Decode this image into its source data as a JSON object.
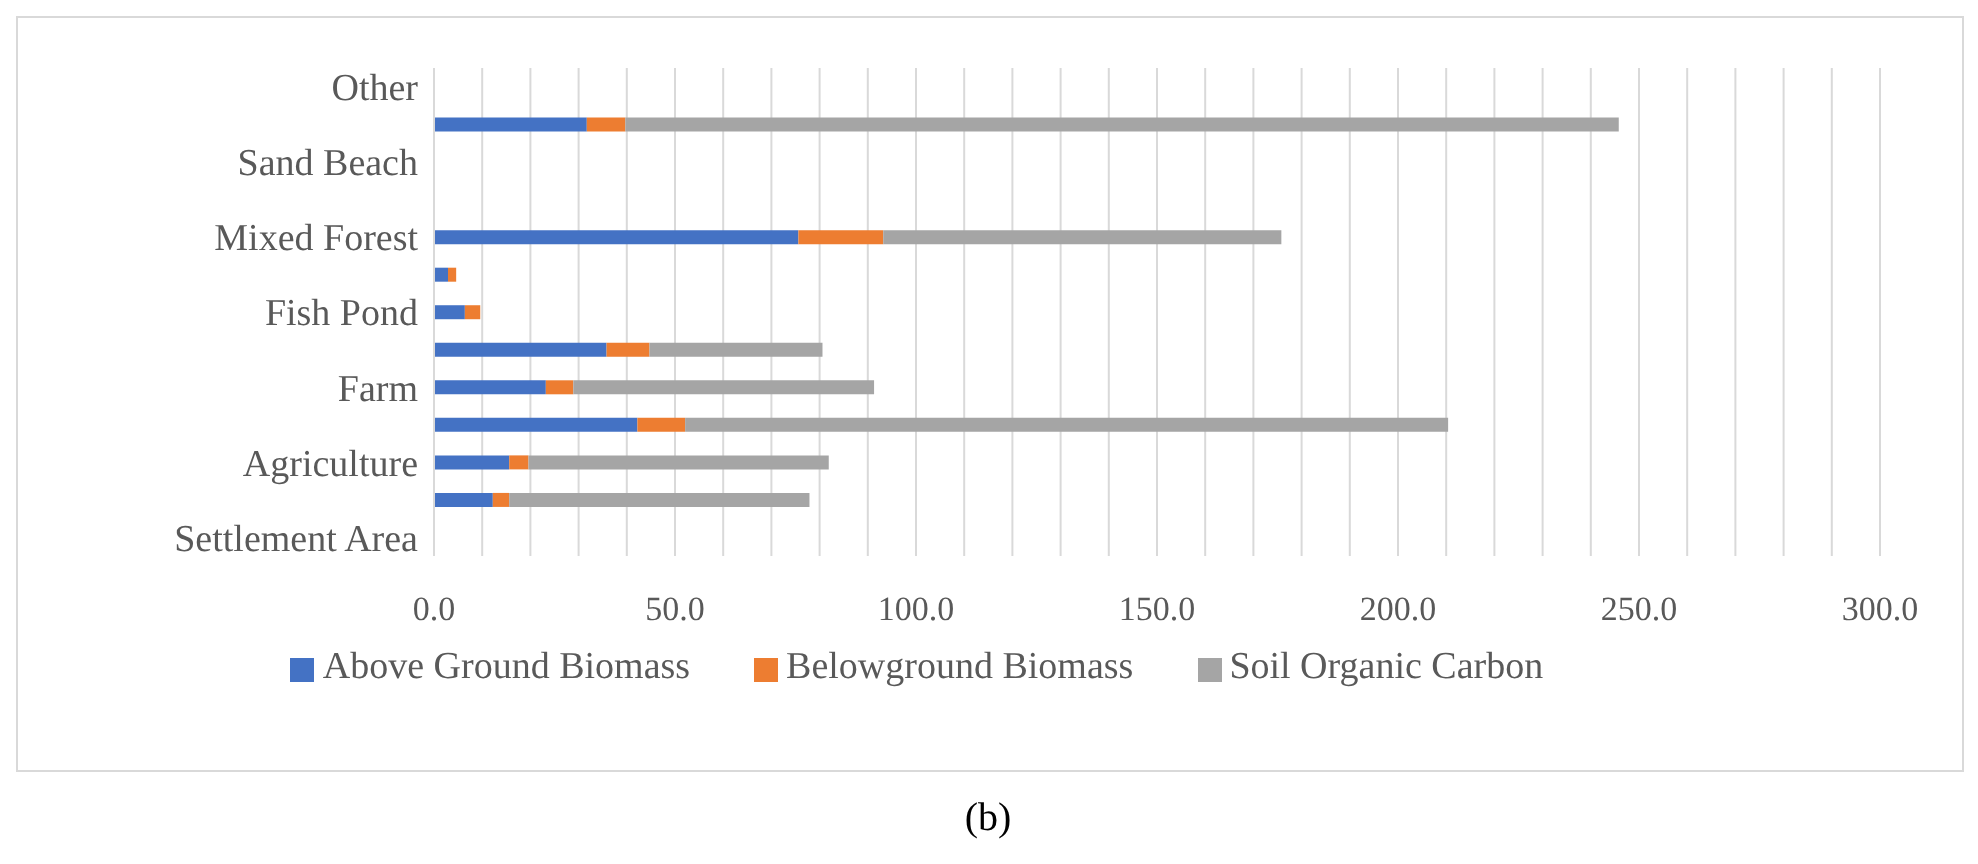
{
  "chart_data": {
    "type": "bar",
    "orientation": "horizontal",
    "stacked": true,
    "categories": [
      "Other",
      null,
      "Sand Beach",
      null,
      "Mixed Forest",
      null,
      "Fish Pond",
      null,
      "Farm",
      null,
      "Agriculture",
      null,
      "Settlement Area"
    ],
    "series": [
      {
        "name": "Above Ground Biomass",
        "color": "#4472c4",
        "values": [
          null,
          31.7,
          null,
          null,
          75.6,
          2.9,
          6.4,
          35.8,
          23.2,
          42.2,
          15.6,
          12.2,
          null
        ]
      },
      {
        "name": "Belowground Biomass",
        "color": "#ed7d31",
        "values": [
          null,
          8.0,
          null,
          null,
          17.6,
          1.7,
          3.2,
          8.9,
          5.7,
          9.9,
          4.0,
          3.4,
          null
        ]
      },
      {
        "name": "Soil Organic Carbon",
        "color": "#a5a5a5",
        "values": [
          null,
          206.1,
          null,
          null,
          82.6,
          null,
          null,
          35.9,
          62.4,
          158.3,
          62.3,
          62.3,
          null
        ]
      }
    ],
    "xlim": [
      0,
      300
    ],
    "xticks": [
      {
        "value": 0,
        "label": "0.0"
      },
      {
        "value": 10,
        "label": null
      },
      {
        "value": 20,
        "label": null
      },
      {
        "value": 30,
        "label": null
      },
      {
        "value": 40,
        "label": null
      },
      {
        "value": 50,
        "label": "50.0"
      },
      {
        "value": 60,
        "label": null
      },
      {
        "value": 70,
        "label": null
      },
      {
        "value": 80,
        "label": null
      },
      {
        "value": 90,
        "label": null
      },
      {
        "value": 100,
        "label": "100.0"
      },
      {
        "value": 110,
        "label": null
      },
      {
        "value": 120,
        "label": null
      },
      {
        "value": 130,
        "label": null
      },
      {
        "value": 140,
        "label": null
      },
      {
        "value": 150,
        "label": "150.0"
      },
      {
        "value": 160,
        "label": null
      },
      {
        "value": 170,
        "label": null
      },
      {
        "value": 180,
        "label": null
      },
      {
        "value": 190,
        "label": null
      },
      {
        "value": 200,
        "label": "200.0"
      },
      {
        "value": 210,
        "label": null
      },
      {
        "value": 220,
        "label": null
      },
      {
        "value": 230,
        "label": null
      },
      {
        "value": 240,
        "label": null
      },
      {
        "value": 250,
        "label": "250.0"
      },
      {
        "value": 260,
        "label": null
      },
      {
        "value": 270,
        "label": null
      },
      {
        "value": 280,
        "label": null
      },
      {
        "value": 290,
        "label": null
      },
      {
        "value": 300,
        "label": "300.0"
      }
    ],
    "grid": "x",
    "legend": "bottom",
    "annotations": [
      "(b)"
    ]
  }
}
